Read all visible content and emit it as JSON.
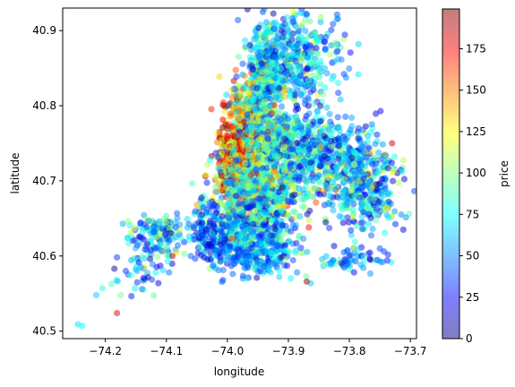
{
  "chart_data": {
    "type": "scatter",
    "title": "",
    "xlabel": "longitude",
    "ylabel": "latitude",
    "xlim": [
      -74.27,
      -73.69
    ],
    "ylim": [
      40.49,
      40.93
    ],
    "x_ticks": [
      -74.2,
      -74.1,
      -74.0,
      -73.9,
      -73.8,
      -73.7
    ],
    "x_tick_labels": [
      "−74.2",
      "−74.1",
      "−74.0",
      "−73.9",
      "−73.8",
      "−73.7"
    ],
    "y_ticks": [
      40.5,
      40.6,
      40.7,
      40.8,
      40.9
    ],
    "y_tick_labels": [
      "40.5",
      "40.6",
      "40.7",
      "40.8",
      "40.9"
    ],
    "grid": false,
    "colormap": "jet",
    "point_alpha": 0.5,
    "colorbar": {
      "label": "price",
      "range": [
        0,
        199
      ],
      "ticks": [
        0,
        25,
        50,
        75,
        100,
        125,
        150,
        175
      ],
      "tick_labels": [
        "0",
        "25",
        "50",
        "75",
        "100",
        "125",
        "150",
        "175"
      ]
    },
    "points_sample": [
      {
        "lon": -74.245,
        "lat": 40.509,
        "price": 70
      },
      {
        "lon": -74.238,
        "lat": 40.507,
        "price": 75
      },
      {
        "lon": -74.215,
        "lat": 40.548,
        "price": 65
      },
      {
        "lon": -74.205,
        "lat": 40.557,
        "price": 80
      },
      {
        "lon": -74.19,
        "lat": 40.563,
        "price": 90
      },
      {
        "lon": -74.181,
        "lat": 40.524,
        "price": 180
      },
      {
        "lon": -74.175,
        "lat": 40.548,
        "price": 100
      },
      {
        "lon": -74.16,
        "lat": 40.641,
        "price": 80
      },
      {
        "lon": -74.155,
        "lat": 40.62,
        "price": 40
      },
      {
        "lon": -74.148,
        "lat": 40.58,
        "price": 60
      },
      {
        "lon": -74.14,
        "lat": 40.556,
        "price": 50
      },
      {
        "lon": -74.12,
        "lat": 40.632,
        "price": 35
      },
      {
        "lon": -74.1,
        "lat": 40.645,
        "price": 110
      },
      {
        "lon": -74.09,
        "lat": 40.6,
        "price": 190
      },
      {
        "lon": -74.085,
        "lat": 40.625,
        "price": 60
      },
      {
        "lon": -74.06,
        "lat": 40.6,
        "price": 45
      },
      {
        "lon": -74.03,
        "lat": 40.64,
        "price": 30
      },
      {
        "lon": -74.01,
        "lat": 40.707,
        "price": 190
      },
      {
        "lon": -73.99,
        "lat": 40.76,
        "price": 170
      },
      {
        "lon": -73.98,
        "lat": 40.75,
        "price": 160
      },
      {
        "lon": -73.95,
        "lat": 40.78,
        "price": 120
      },
      {
        "lon": -73.93,
        "lat": 40.85,
        "price": 70
      },
      {
        "lon": -73.91,
        "lat": 40.88,
        "price": 55
      },
      {
        "lon": -73.9,
        "lat": 40.9,
        "price": 60
      },
      {
        "lon": -73.87,
        "lat": 40.566,
        "price": 195
      },
      {
        "lon": -73.83,
        "lat": 40.588,
        "price": 65
      },
      {
        "lon": -73.8,
        "lat": 40.7,
        "price": 50
      },
      {
        "lon": -73.75,
        "lat": 40.61,
        "price": 40
      },
      {
        "lon": -73.74,
        "lat": 40.73,
        "price": 90
      },
      {
        "lon": -73.73,
        "lat": 40.75,
        "price": 185
      }
    ]
  }
}
